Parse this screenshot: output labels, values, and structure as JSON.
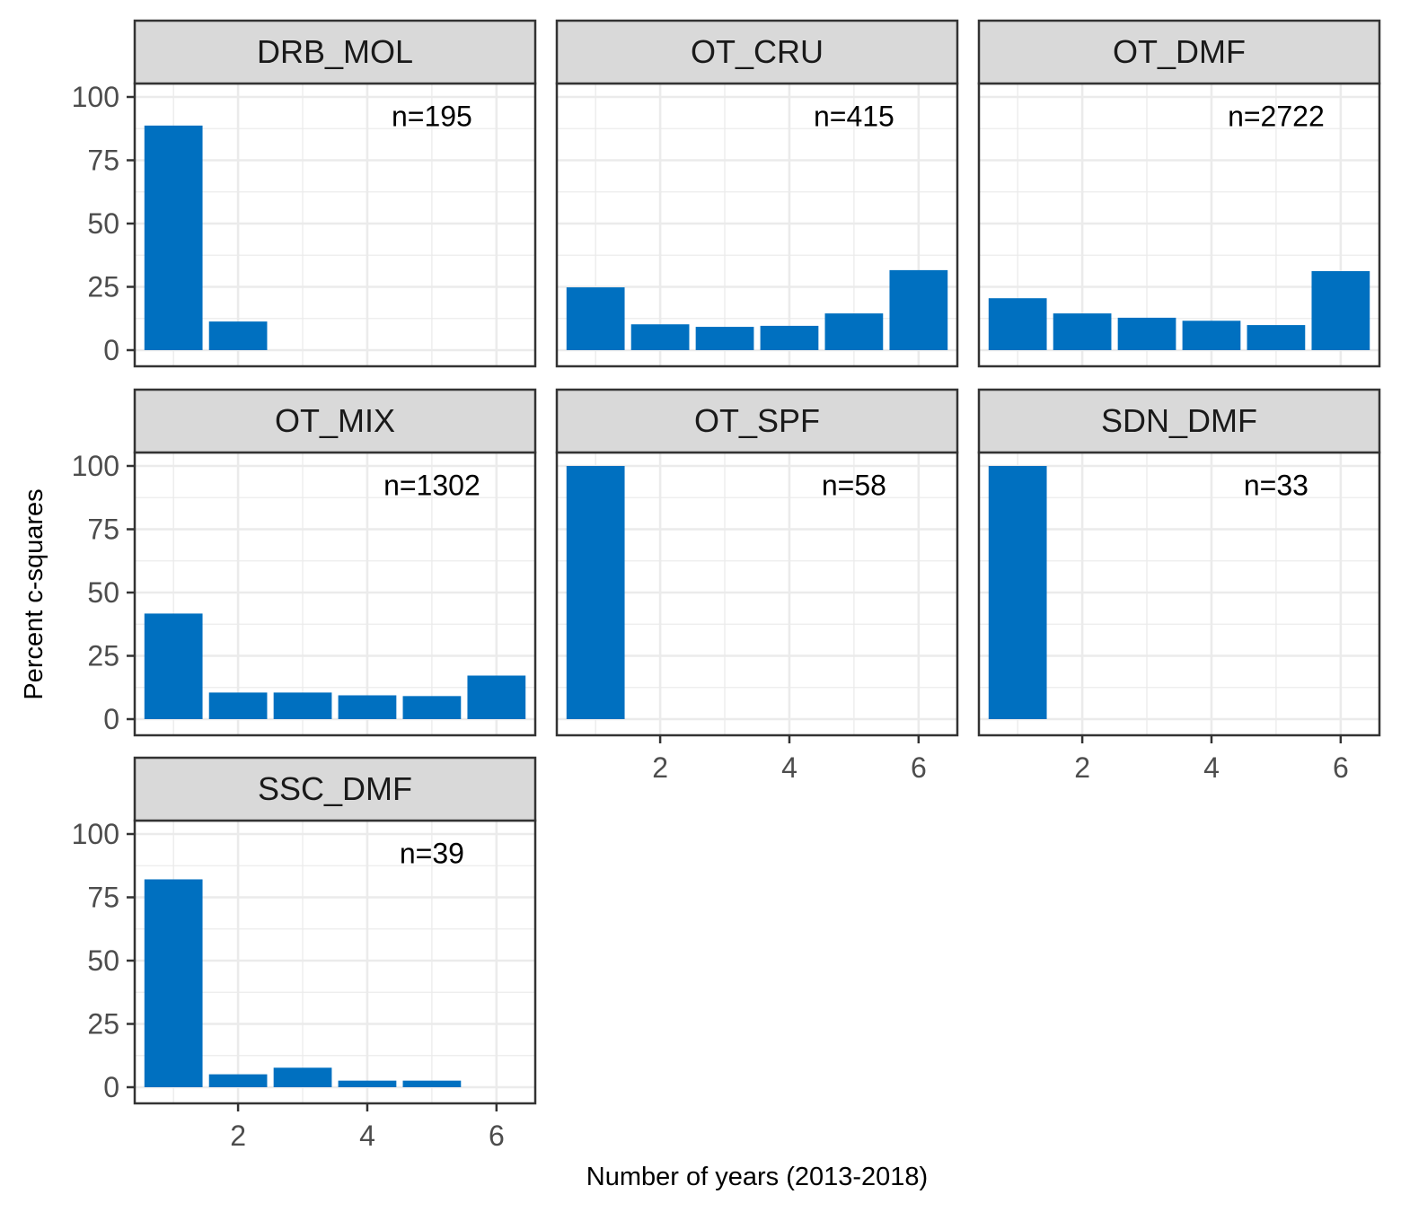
{
  "chart_data": {
    "type": "bar",
    "layout": "faceted",
    "xlabel": "Number of years (2013-2018)",
    "ylabel": "Percent c-squares",
    "x": [
      1,
      2,
      3,
      4,
      5,
      6
    ],
    "xlim": [
      0.4,
      6.6
    ],
    "ylim": [
      0,
      100
    ],
    "xticks": [
      2,
      4,
      6
    ],
    "yticks": [
      0,
      25,
      50,
      75,
      100
    ],
    "grid": true,
    "bar_color": "#0070c0",
    "panels": [
      {
        "name": "DRB_MOL",
        "annotation": "n=195",
        "values": [
          88.7,
          11.3,
          0,
          0,
          0,
          0
        ]
      },
      {
        "name": "OT_CRU",
        "annotation": "n=415",
        "values": [
          24.8,
          10.2,
          9.2,
          9.6,
          14.5,
          31.6
        ]
      },
      {
        "name": "OT_DMF",
        "annotation": "n=2722",
        "values": [
          20.5,
          14.5,
          12.8,
          11.6,
          9.9,
          31.2
        ]
      },
      {
        "name": "OT_MIX",
        "annotation": "n=1302",
        "values": [
          41.7,
          10.5,
          10.5,
          9.4,
          9.1,
          17.2
        ]
      },
      {
        "name": "OT_SPF",
        "annotation": "n=58",
        "values": [
          100,
          0,
          0,
          0,
          0,
          0
        ]
      },
      {
        "name": "SDN_DMF",
        "annotation": "n=33",
        "values": [
          100,
          0,
          0,
          0,
          0,
          0
        ]
      },
      {
        "name": "SSC_DMF",
        "annotation": "n=39",
        "values": [
          82.1,
          5.1,
          7.7,
          2.6,
          2.6,
          0
        ]
      }
    ]
  }
}
